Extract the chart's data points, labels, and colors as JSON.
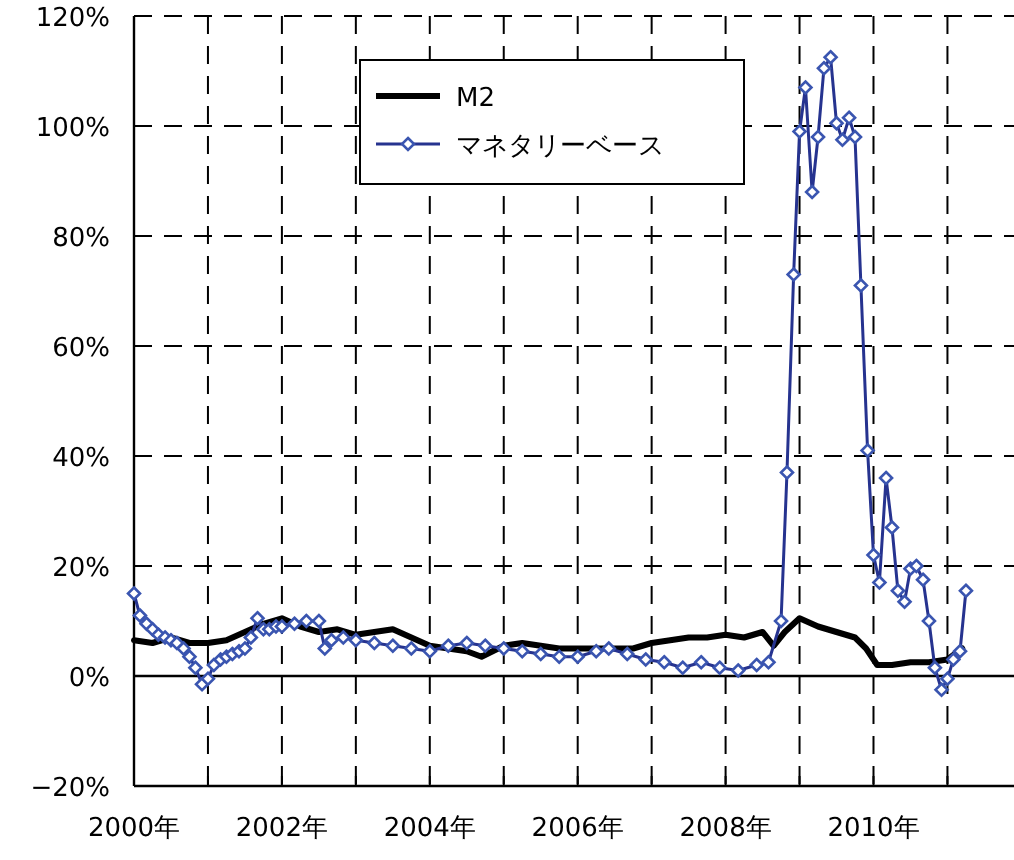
{
  "chart_data": {
    "type": "line",
    "xlim": [
      2000,
      2011.9
    ],
    "ylim": [
      -20,
      120
    ],
    "xticks": [
      {
        "value": 2000,
        "label": "2000年"
      },
      {
        "value": 2001,
        "label": null
      },
      {
        "value": 2002,
        "label": "2002年"
      },
      {
        "value": 2003,
        "label": null
      },
      {
        "value": 2004,
        "label": "2004年"
      },
      {
        "value": 2005,
        "label": null
      },
      {
        "value": 2006,
        "label": "2006年"
      },
      {
        "value": 2007,
        "label": null
      },
      {
        "value": 2008,
        "label": "2008年"
      },
      {
        "value": 2009,
        "label": null
      },
      {
        "value": 2010,
        "label": "2010年"
      },
      {
        "value": 2011,
        "label": null
      }
    ],
    "yticks": [
      {
        "value": -20,
        "label": "−20%"
      },
      {
        "value": 0,
        "label": "0%"
      },
      {
        "value": 20,
        "label": "20%"
      },
      {
        "value": 40,
        "label": "40%"
      },
      {
        "value": 60,
        "label": "60%"
      },
      {
        "value": 80,
        "label": "80%"
      },
      {
        "value": 100,
        "label": "100%"
      },
      {
        "value": 120,
        "label": "120%"
      }
    ],
    "grid": true,
    "legend": "top",
    "ref_lines": [
      {
        "axis": "y",
        "value": 0,
        "color": "#000000",
        "line_style": "solid"
      }
    ],
    "series": [
      {
        "name": "M2",
        "color": "#000000",
        "marker": "none",
        "x": [
          2000.0,
          2000.25,
          2000.5,
          2000.75,
          2001.0,
          2001.25,
          2001.5,
          2001.75,
          2002.0,
          2002.25,
          2002.5,
          2002.75,
          2003.0,
          2003.25,
          2003.5,
          2003.75,
          2004.0,
          2004.25,
          2004.5,
          2004.7,
          2005.0,
          2005.25,
          2005.5,
          2005.75,
          2006.0,
          2006.25,
          2006.5,
          2006.75,
          2007.0,
          2007.25,
          2007.5,
          2007.75,
          2008.0,
          2008.25,
          2008.5,
          2008.65,
          2008.8,
          2009.0,
          2009.25,
          2009.5,
          2009.75,
          2009.9,
          2010.05,
          2010.25,
          2010.5,
          2010.75,
          2011.0,
          2011.2
        ],
        "values": [
          6.5,
          6,
          7,
          6,
          6,
          6.5,
          8,
          9.5,
          10.5,
          9,
          8,
          8.5,
          7.5,
          8,
          8.5,
          7,
          5.5,
          5,
          4.5,
          3.5,
          5.5,
          6,
          5.5,
          5,
          5,
          5,
          5,
          5,
          6,
          6.5,
          7,
          7,
          7.5,
          7,
          8,
          5.5,
          8,
          10.5,
          9,
          8,
          7,
          5,
          2,
          2,
          2.5,
          2.5,
          3,
          5
        ]
      },
      {
        "name": "マネタリーベース",
        "color": "#26338f",
        "marker": "diamond",
        "x": [
          2000.0,
          2000.08,
          2000.17,
          2000.25,
          2000.33,
          2000.42,
          2000.5,
          2000.58,
          2000.67,
          2000.75,
          2000.83,
          2000.92,
          2001.0,
          2001.08,
          2001.17,
          2001.25,
          2001.33,
          2001.42,
          2001.5,
          2001.58,
          2001.67,
          2001.75,
          2001.83,
          2001.92,
          2002.0,
          2002.17,
          2002.33,
          2002.5,
          2002.58,
          2002.67,
          2002.83,
          2003.0,
          2003.25,
          2003.5,
          2003.75,
          2004.0,
          2004.25,
          2004.5,
          2004.75,
          2005.0,
          2005.25,
          2005.5,
          2005.75,
          2006.0,
          2006.25,
          2006.42,
          2006.67,
          2006.92,
          2007.17,
          2007.42,
          2007.67,
          2007.92,
          2008.17,
          2008.42,
          2008.58,
          2008.75,
          2008.83,
          2008.92,
          2009.0,
          2009.08,
          2009.17,
          2009.25,
          2009.33,
          2009.42,
          2009.5,
          2009.58,
          2009.67,
          2009.75,
          2009.83,
          2009.92,
          2010.0,
          2010.08,
          2010.17,
          2010.25,
          2010.33,
          2010.42,
          2010.5,
          2010.58,
          2010.67,
          2010.75,
          2010.83,
          2010.92,
          2011.0,
          2011.08,
          2011.17,
          2011.25
        ],
        "values": [
          15,
          11,
          9.5,
          8.5,
          7.5,
          7,
          6.5,
          6,
          5,
          3.5,
          1.5,
          -1.5,
          -0.5,
          2,
          3,
          3.5,
          4,
          4.5,
          5,
          7,
          10.5,
          8.5,
          8.5,
          9,
          9,
          9.5,
          10,
          10,
          5,
          6.5,
          7,
          6.5,
          6,
          5.5,
          5,
          4.5,
          5.5,
          6,
          5.5,
          5,
          4.5,
          4,
          3.5,
          3.5,
          4.5,
          5,
          4,
          3,
          2.5,
          1.5,
          2.5,
          1.5,
          1,
          2,
          2.5,
          10,
          37,
          73,
          99,
          107,
          88,
          98,
          110.5,
          112.5,
          100.5,
          97.5,
          101.5,
          98,
          71,
          41,
          22,
          17,
          36,
          27,
          15.5,
          13.5,
          19.5,
          20,
          17.5,
          10,
          1.5,
          -2.5,
          -0.5,
          3,
          4.5,
          15.5
        ]
      }
    ]
  }
}
